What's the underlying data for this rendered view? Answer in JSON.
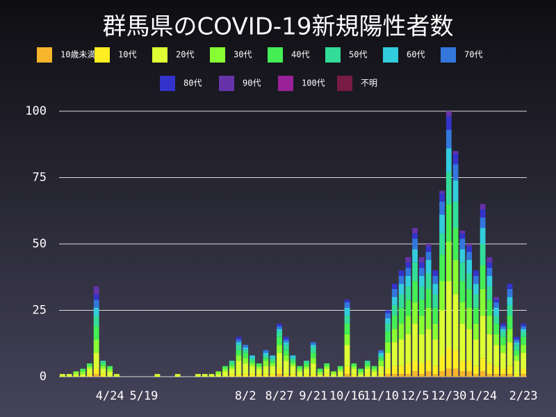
{
  "chart_data": {
    "type": "stacked-bar",
    "title": "群馬県のCOVID-19新規陽性者数",
    "categories": [
      null,
      null,
      null,
      null,
      null,
      null,
      null,
      "4/24",
      null,
      null,
      null,
      null,
      "5/19",
      null,
      null,
      null,
      null,
      null,
      null,
      null,
      null,
      null,
      null,
      null,
      null,
      null,
      null,
      "8/2",
      null,
      null,
      null,
      null,
      "8/27",
      null,
      null,
      null,
      null,
      "9/21",
      null,
      null,
      null,
      null,
      "10/16",
      null,
      null,
      null,
      null,
      "11/10",
      null,
      null,
      null,
      null,
      "12/5",
      null,
      null,
      null,
      null,
      "12/30",
      null,
      null,
      null,
      null,
      "1/24",
      null,
      null,
      null,
      null,
      null,
      "2/23"
    ],
    "ylim": [
      0,
      100
    ],
    "yticks": [
      0,
      25,
      50,
      75,
      100
    ],
    "grid": true,
    "series": [
      {
        "name": "10歳未満",
        "color": "#f7b52c",
        "values": [
          0,
          0,
          0,
          0,
          0,
          1,
          0,
          0,
          0,
          0,
          0,
          0,
          0,
          0,
          0,
          0,
          0,
          0,
          0,
          0,
          0,
          0,
          0,
          0,
          0,
          0,
          0,
          0,
          0,
          0,
          0,
          0,
          1,
          0,
          0,
          0,
          0,
          0,
          0,
          0,
          0,
          0,
          1,
          0,
          0,
          0,
          0,
          0,
          1,
          1,
          1,
          1,
          2,
          1,
          2,
          1,
          2,
          3,
          3,
          2,
          2,
          1,
          2,
          1,
          1,
          1,
          1,
          0,
          1
        ]
      },
      {
        "name": "10代",
        "color": "#ffee22",
        "values": [
          0,
          0,
          0,
          0,
          1,
          2,
          1,
          0,
          0,
          0,
          0,
          0,
          0,
          0,
          0,
          0,
          0,
          0,
          0,
          0,
          0,
          0,
          0,
          0,
          0,
          1,
          1,
          1,
          1,
          1,
          1,
          1,
          2,
          1,
          1,
          0,
          1,
          1,
          0,
          1,
          0,
          0,
          3,
          1,
          0,
          1,
          0,
          1,
          2,
          3,
          3,
          4,
          4,
          4,
          4,
          3,
          6,
          8,
          7,
          4,
          4,
          3,
          5,
          4,
          3,
          2,
          3,
          1,
          2
        ]
      },
      {
        "name": "20代",
        "color": "#ddff33",
        "values": [
          1,
          1,
          1,
          1,
          2,
          6,
          2,
          2,
          1,
          0,
          0,
          0,
          0,
          0,
          1,
          0,
          0,
          1,
          0,
          0,
          1,
          1,
          1,
          1,
          2,
          2,
          5,
          4,
          3,
          2,
          3,
          3,
          6,
          5,
          3,
          2,
          2,
          4,
          1,
          2,
          1,
          2,
          8,
          2,
          1,
          2,
          2,
          3,
          6,
          9,
          10,
          11,
          14,
          11,
          12,
          10,
          17,
          25,
          21,
          14,
          12,
          10,
          16,
          11,
          8,
          6,
          9,
          5,
          6
        ]
      },
      {
        "name": "30代",
        "color": "#88ff33",
        "values": [
          0,
          0,
          1,
          1,
          1,
          5,
          1,
          1,
          0,
          0,
          0,
          0,
          0,
          0,
          0,
          0,
          0,
          0,
          0,
          0,
          0,
          0,
          0,
          1,
          1,
          1,
          2,
          2,
          1,
          1,
          2,
          1,
          3,
          2,
          1,
          1,
          1,
          2,
          1,
          1,
          1,
          1,
          4,
          1,
          1,
          1,
          1,
          2,
          4,
          5,
          6,
          7,
          8,
          7,
          8,
          6,
          11,
          15,
          13,
          8,
          8,
          6,
          10,
          7,
          4,
          3,
          5,
          2,
          3
        ]
      },
      {
        "name": "40代",
        "color": "#44ee55",
        "values": [
          0,
          0,
          0,
          1,
          1,
          5,
          1,
          1,
          0,
          0,
          0,
          0,
          0,
          0,
          0,
          0,
          0,
          0,
          0,
          0,
          0,
          0,
          0,
          0,
          1,
          1,
          2,
          2,
          1,
          1,
          1,
          1,
          3,
          2,
          1,
          1,
          1,
          2,
          1,
          1,
          0,
          1,
          4,
          1,
          1,
          1,
          1,
          1,
          4,
          5,
          6,
          6,
          8,
          6,
          7,
          6,
          10,
          14,
          12,
          8,
          7,
          6,
          9,
          6,
          4,
          3,
          5,
          2,
          3
        ]
      },
      {
        "name": "50代",
        "color": "#33dd99",
        "values": [
          0,
          0,
          0,
          0,
          0,
          4,
          1,
          0,
          0,
          0,
          0,
          0,
          0,
          0,
          0,
          0,
          0,
          0,
          0,
          0,
          0,
          0,
          0,
          0,
          0,
          1,
          2,
          1,
          1,
          0,
          1,
          1,
          2,
          2,
          1,
          0,
          1,
          2,
          0,
          0,
          0,
          0,
          3,
          0,
          0,
          1,
          0,
          1,
          3,
          4,
          5,
          5,
          7,
          5,
          6,
          5,
          8,
          12,
          10,
          7,
          6,
          5,
          8,
          5,
          3,
          2,
          4,
          2,
          2
        ]
      },
      {
        "name": "60代",
        "color": "#33ccdd",
        "values": [
          0,
          0,
          0,
          0,
          0,
          3,
          0,
          0,
          0,
          0,
          0,
          0,
          0,
          0,
          0,
          0,
          0,
          0,
          0,
          0,
          0,
          0,
          0,
          0,
          0,
          0,
          1,
          1,
          1,
          0,
          1,
          1,
          1,
          1,
          1,
          0,
          0,
          1,
          0,
          0,
          0,
          0,
          3,
          0,
          0,
          0,
          0,
          1,
          2,
          3,
          4,
          4,
          5,
          4,
          5,
          4,
          7,
          9,
          8,
          5,
          5,
          4,
          6,
          4,
          3,
          1,
          3,
          1,
          1
        ]
      },
      {
        "name": "70代",
        "color": "#3377dd",
        "values": [
          0,
          0,
          0,
          0,
          0,
          3,
          0,
          0,
          0,
          0,
          0,
          0,
          0,
          0,
          0,
          0,
          0,
          0,
          0,
          0,
          0,
          0,
          0,
          0,
          0,
          0,
          1,
          1,
          0,
          0,
          1,
          0,
          1,
          1,
          0,
          0,
          0,
          1,
          0,
          0,
          0,
          0,
          2,
          0,
          0,
          0,
          0,
          1,
          2,
          3,
          3,
          3,
          4,
          3,
          3,
          3,
          5,
          7,
          6,
          4,
          3,
          3,
          4,
          3,
          2,
          1,
          3,
          1,
          1
        ]
      },
      {
        "name": "80代",
        "color": "#3333cc",
        "values": [
          0,
          0,
          0,
          0,
          0,
          2,
          0,
          0,
          0,
          0,
          0,
          0,
          0,
          0,
          0,
          0,
          0,
          0,
          0,
          0,
          0,
          0,
          0,
          0,
          0,
          0,
          1,
          0,
          0,
          0,
          0,
          0,
          1,
          1,
          0,
          0,
          0,
          0,
          0,
          0,
          0,
          0,
          1,
          0,
          0,
          0,
          0,
          0,
          1,
          2,
          2,
          2,
          2,
          2,
          2,
          2,
          3,
          5,
          4,
          2,
          2,
          2,
          3,
          2,
          1,
          1,
          2,
          1,
          1
        ]
      },
      {
        "name": "90代",
        "color": "#6633aa",
        "values": [
          0,
          0,
          0,
          0,
          0,
          3,
          0,
          0,
          0,
          0,
          0,
          0,
          0,
          0,
          0,
          0,
          0,
          0,
          0,
          0,
          0,
          0,
          0,
          0,
          0,
          0,
          0,
          0,
          0,
          0,
          0,
          0,
          0,
          0,
          0,
          0,
          0,
          0,
          0,
          0,
          0,
          0,
          0,
          0,
          0,
          0,
          0,
          0,
          0,
          0,
          0,
          2,
          2,
          2,
          1,
          0,
          1,
          2,
          1,
          1,
          1,
          0,
          2,
          2,
          1,
          0,
          0,
          0,
          0
        ]
      },
      {
        "name": "100代",
        "color": "#992299",
        "values": [
          0,
          0,
          0,
          0,
          0,
          0,
          0,
          0,
          0,
          0,
          0,
          0,
          0,
          0,
          0,
          0,
          0,
          0,
          0,
          0,
          0,
          0,
          0,
          0,
          0,
          0,
          0,
          0,
          0,
          0,
          0,
          0,
          0,
          0,
          0,
          0,
          0,
          0,
          0,
          0,
          0,
          0,
          0,
          0,
          0,
          0,
          0,
          0,
          0,
          0,
          0,
          0,
          0,
          0,
          0,
          0,
          0,
          0,
          0,
          0,
          0,
          0,
          0,
          0,
          0,
          0,
          0,
          0,
          0
        ]
      },
      {
        "name": "不明",
        "color": "#771a44",
        "values": [
          0,
          0,
          0,
          0,
          0,
          0,
          0,
          0,
          0,
          0,
          0,
          0,
          0,
          0,
          0,
          0,
          0,
          0,
          0,
          0,
          0,
          0,
          0,
          0,
          0,
          0,
          0,
          0,
          0,
          0,
          0,
          0,
          0,
          0,
          0,
          0,
          0,
          0,
          0,
          0,
          0,
          0,
          0,
          0,
          0,
          0,
          0,
          0,
          0,
          0,
          0,
          0,
          0,
          0,
          0,
          0,
          0,
          0,
          0,
          0,
          0,
          0,
          0,
          0,
          0,
          0,
          0,
          0,
          0
        ]
      }
    ]
  }
}
